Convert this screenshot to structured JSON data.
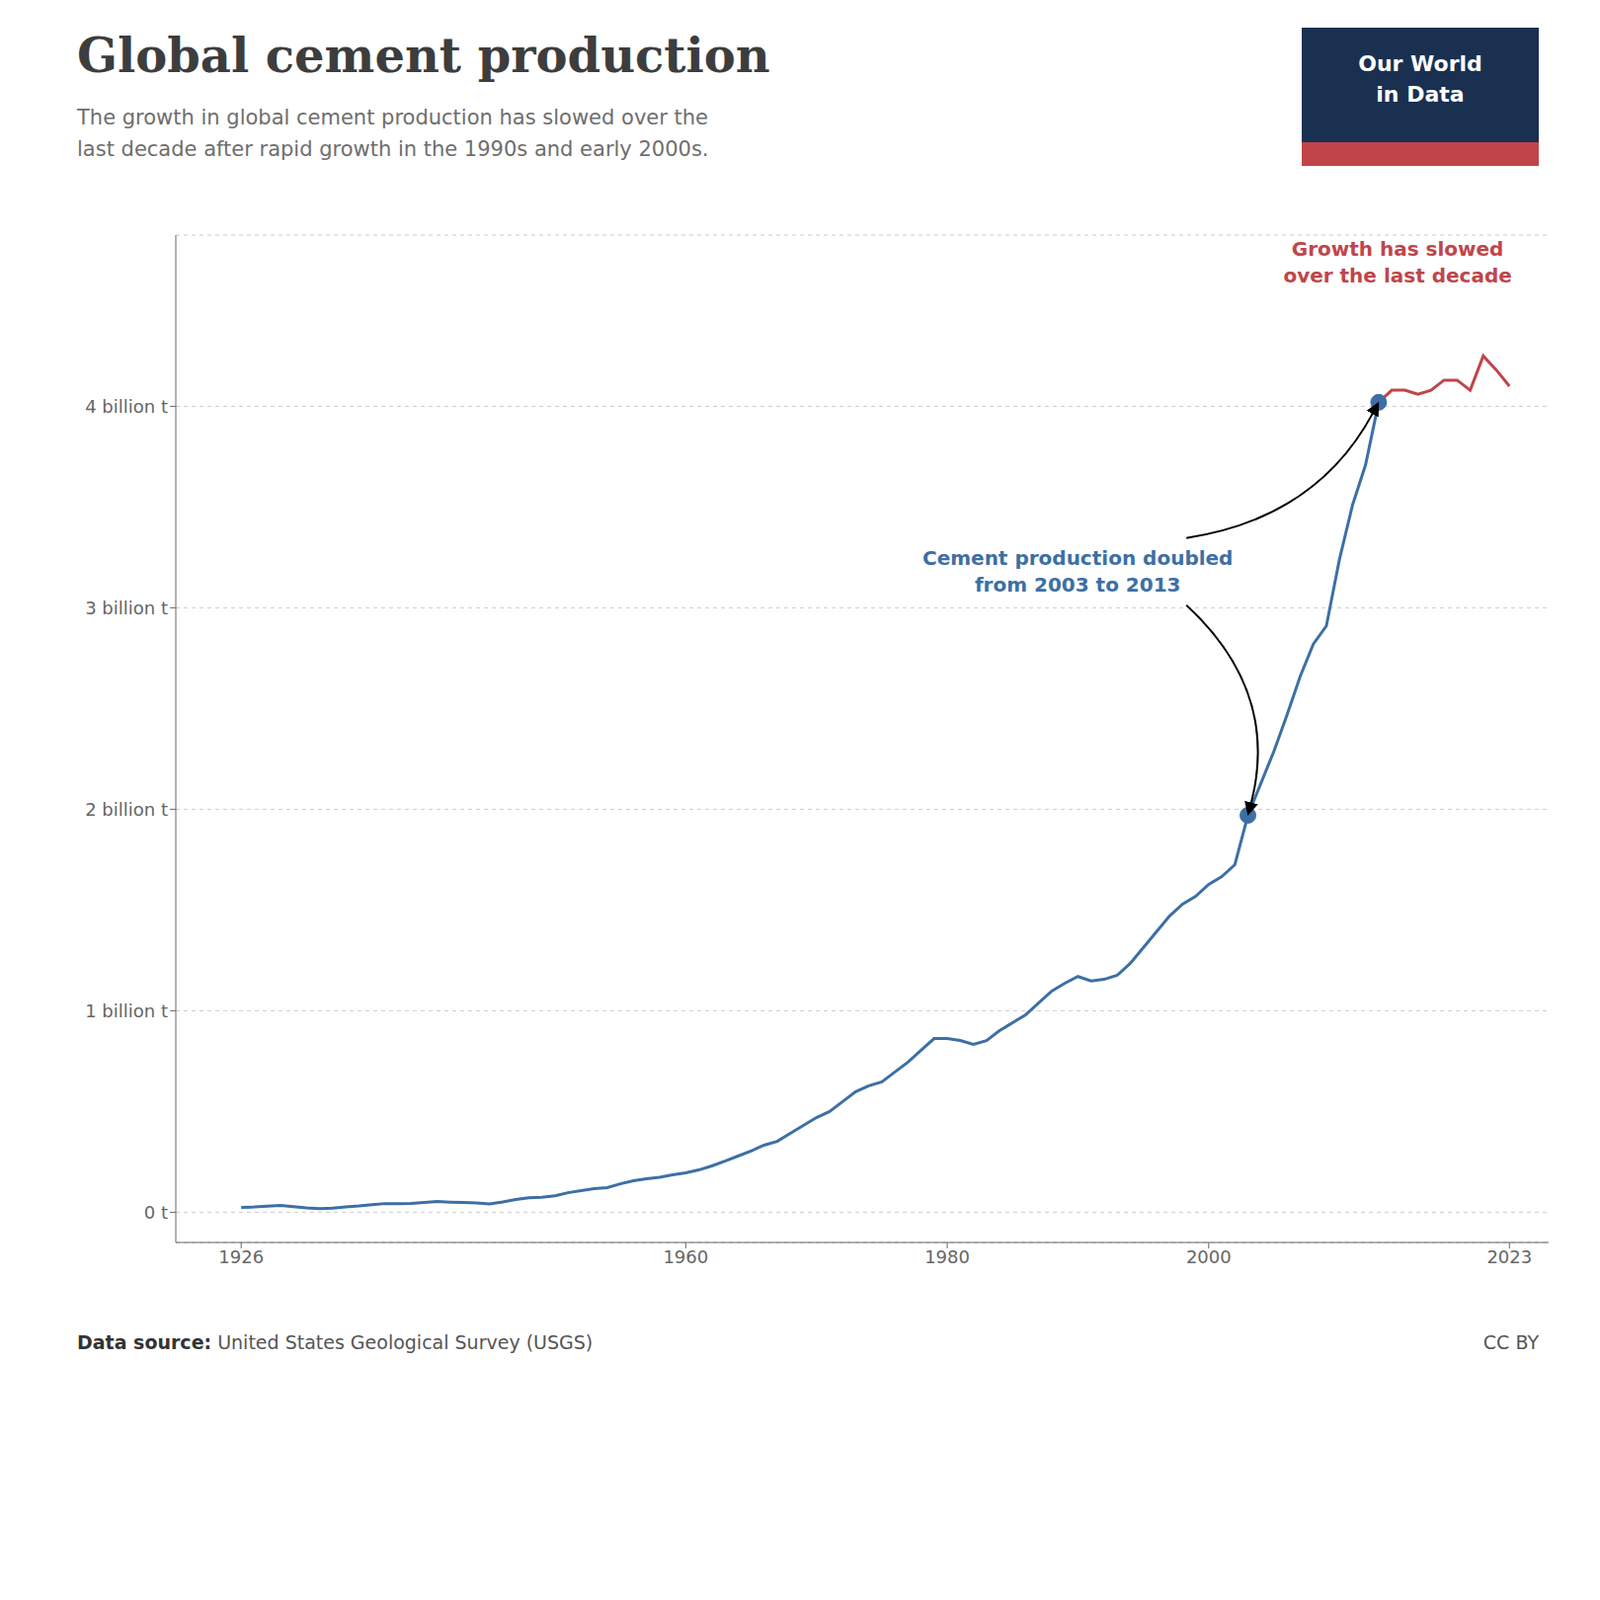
{
  "chart_data": {
    "type": "line",
    "title": "Global cement production",
    "subtitle": "The growth in global cement production has slowed over the\nlast decade after rapid growth in the 1990s and early 2000s.",
    "title_color": "#3d3d3d",
    "subtitle_color": "#6e6e6e",
    "x": [
      1926,
      1927,
      1928,
      1929,
      1930,
      1931,
      1932,
      1933,
      1934,
      1935,
      1936,
      1937,
      1938,
      1939,
      1940,
      1941,
      1942,
      1943,
      1944,
      1945,
      1946,
      1947,
      1948,
      1949,
      1950,
      1951,
      1952,
      1953,
      1954,
      1955,
      1956,
      1957,
      1958,
      1959,
      1960,
      1961,
      1962,
      1963,
      1964,
      1965,
      1966,
      1967,
      1968,
      1969,
      1970,
      1971,
      1972,
      1973,
      1974,
      1975,
      1976,
      1977,
      1978,
      1979,
      1980,
      1981,
      1982,
      1983,
      1984,
      1985,
      1986,
      1987,
      1988,
      1989,
      1990,
      1991,
      1992,
      1993,
      1994,
      1995,
      1996,
      1997,
      1998,
      1999,
      2000,
      2001,
      2002,
      2003,
      2004,
      2005,
      2006,
      2007,
      2008,
      2009,
      2010,
      2011,
      2012,
      2013,
      2014,
      2015,
      2016,
      2017,
      2018,
      2019,
      2020,
      2021,
      2022,
      2023
    ],
    "series": [
      {
        "color": "#3d6fa5",
        "values": [
          0.024,
          0.026,
          0.03,
          0.034,
          0.028,
          0.022,
          0.018,
          0.02,
          0.026,
          0.031,
          0.038,
          0.043,
          0.042,
          0.044,
          0.048,
          0.053,
          0.05,
          0.048,
          0.046,
          0.041,
          0.051,
          0.063,
          0.072,
          0.074,
          0.082,
          0.097,
          0.107,
          0.117,
          0.122,
          0.141,
          0.156,
          0.166,
          0.174,
          0.186,
          0.196,
          0.21,
          0.23,
          0.254,
          0.279,
          0.304,
          0.333,
          0.352,
          0.392,
          0.431,
          0.47,
          0.5,
          0.549,
          0.598,
          0.628,
          0.647,
          0.696,
          0.745,
          0.804,
          0.862,
          0.862,
          0.852,
          0.833,
          0.852,
          0.901,
          0.941,
          0.98,
          1.039,
          1.098,
          1.137,
          1.17,
          1.148,
          1.156,
          1.176,
          1.235,
          1.313,
          1.392,
          1.47,
          1.529,
          1.568,
          1.627,
          1.666,
          1.725,
          1.97,
          2.13,
          2.29,
          2.47,
          2.66,
          2.82,
          2.91,
          3.24,
          3.51,
          3.71,
          4.02,
          null,
          null,
          null,
          null,
          null,
          null,
          null,
          null,
          null,
          null
        ]
      },
      {
        "color": "#c0454a",
        "values": [
          null,
          null,
          null,
          null,
          null,
          null,
          null,
          null,
          null,
          null,
          null,
          null,
          null,
          null,
          null,
          null,
          null,
          null,
          null,
          null,
          null,
          null,
          null,
          null,
          null,
          null,
          null,
          null,
          null,
          null,
          null,
          null,
          null,
          null,
          null,
          null,
          null,
          null,
          null,
          null,
          null,
          null,
          null,
          null,
          null,
          null,
          null,
          null,
          null,
          null,
          null,
          null,
          null,
          null,
          null,
          null,
          null,
          null,
          null,
          null,
          null,
          null,
          null,
          null,
          null,
          null,
          null,
          null,
          null,
          null,
          null,
          null,
          null,
          null,
          null,
          null,
          null,
          null,
          null,
          null,
          null,
          null,
          null,
          null,
          null,
          null,
          null,
          4.02,
          4.08,
          4.08,
          4.06,
          4.08,
          4.13,
          4.13,
          4.08,
          4.25,
          4.18,
          4.1
        ]
      }
    ],
    "highlight_points": [
      {
        "x": 2003,
        "y": 1.97,
        "color": "#3d6fa5"
      },
      {
        "x": 2013,
        "y": 4.02,
        "color": "#3d6fa5"
      }
    ],
    "annotations": [
      {
        "text": "Cement production doubled\nfrom 2003 to 2013",
        "color": "#3d6fa5"
      },
      {
        "text": "Growth has slowed\nover the last decade",
        "color": "#c0454a"
      }
    ],
    "xlim": [
      1921,
      2026
    ],
    "xticks": [
      1926,
      1960,
      1980,
      2000,
      2023
    ],
    "ylim": [
      -0.15,
      4.85
    ],
    "yticks": [
      {
        "value": 0,
        "label": "0 t"
      },
      {
        "value": 1,
        "label": "1 billion t"
      },
      {
        "value": 2,
        "label": "2 billion t"
      },
      {
        "value": 3,
        "label": "3 billion t"
      },
      {
        "value": 4,
        "label": "4 billion t"
      }
    ],
    "grid": true,
    "logo": {
      "text": "Our World\nin Data",
      "color": "#1a3050",
      "accent_color": "#c0454a"
    },
    "source_label": "Data source:",
    "source": "United States Geological Survey (USGS)",
    "license": "CC BY"
  }
}
